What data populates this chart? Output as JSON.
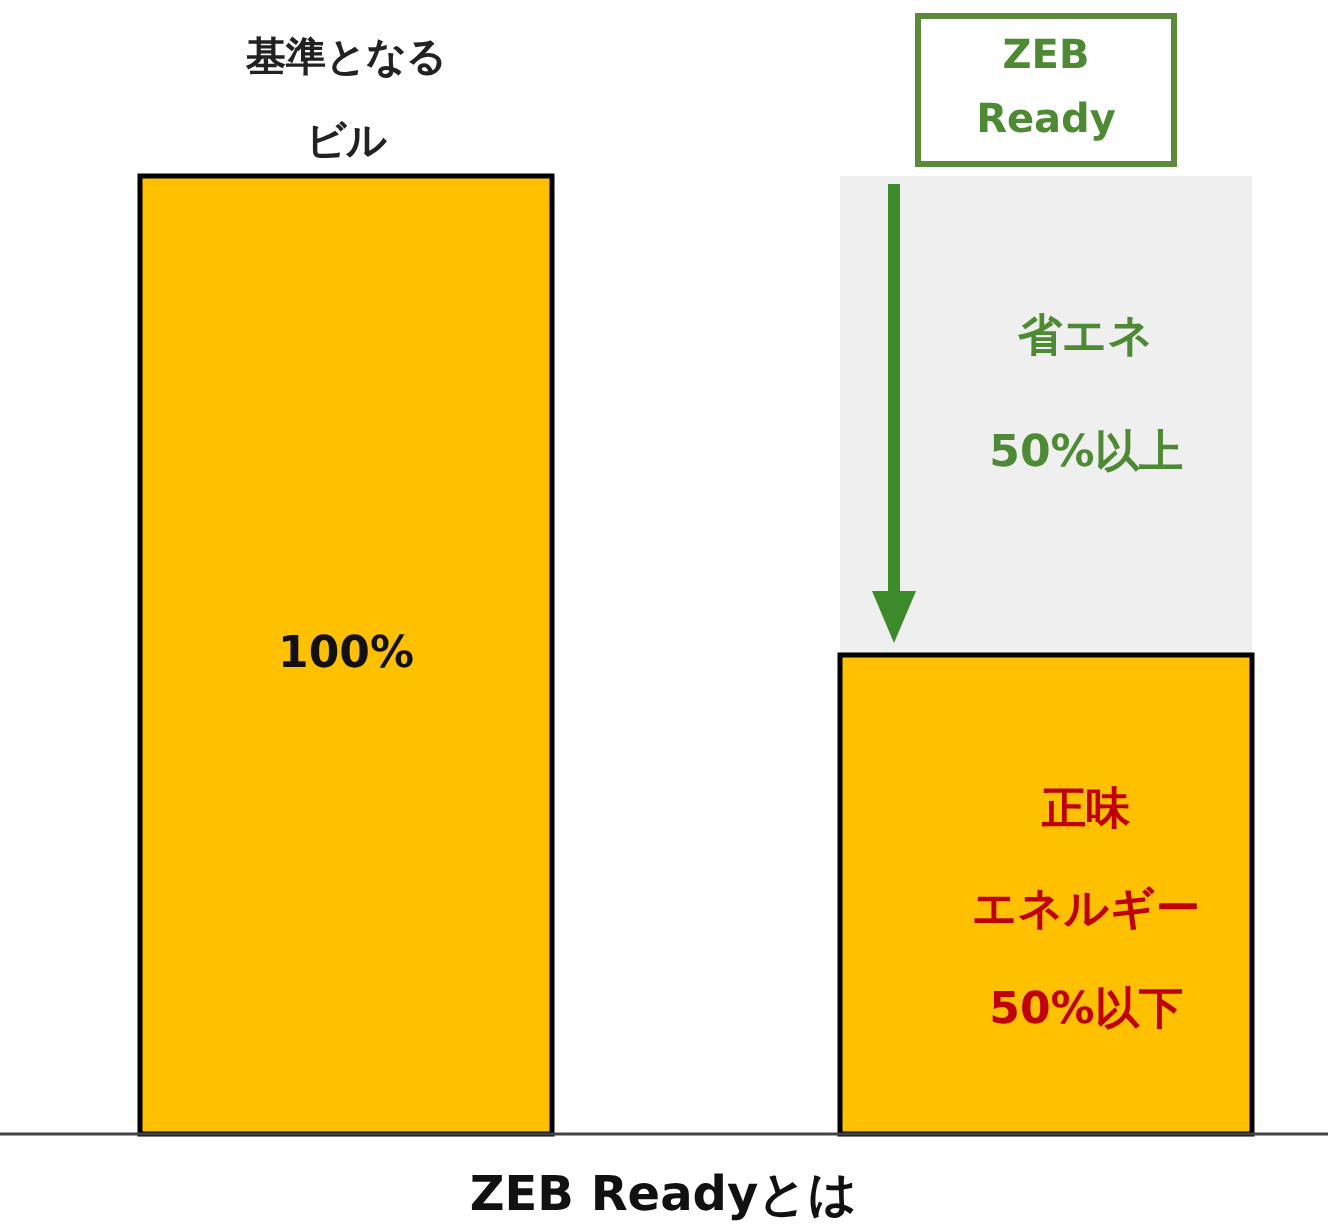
{
  "chart_data": {
    "type": "bar",
    "title": "ZEB Readyとは",
    "categories": [
      "基準となるビル",
      "ZEB Ready"
    ],
    "values": [
      100,
      50
    ],
    "color": "#ffc000",
    "value_labels": [
      "100%",
      null
    ],
    "annotations": [
      "省エネ50%以上",
      "正味エネルギー50%以下"
    ]
  }
}
